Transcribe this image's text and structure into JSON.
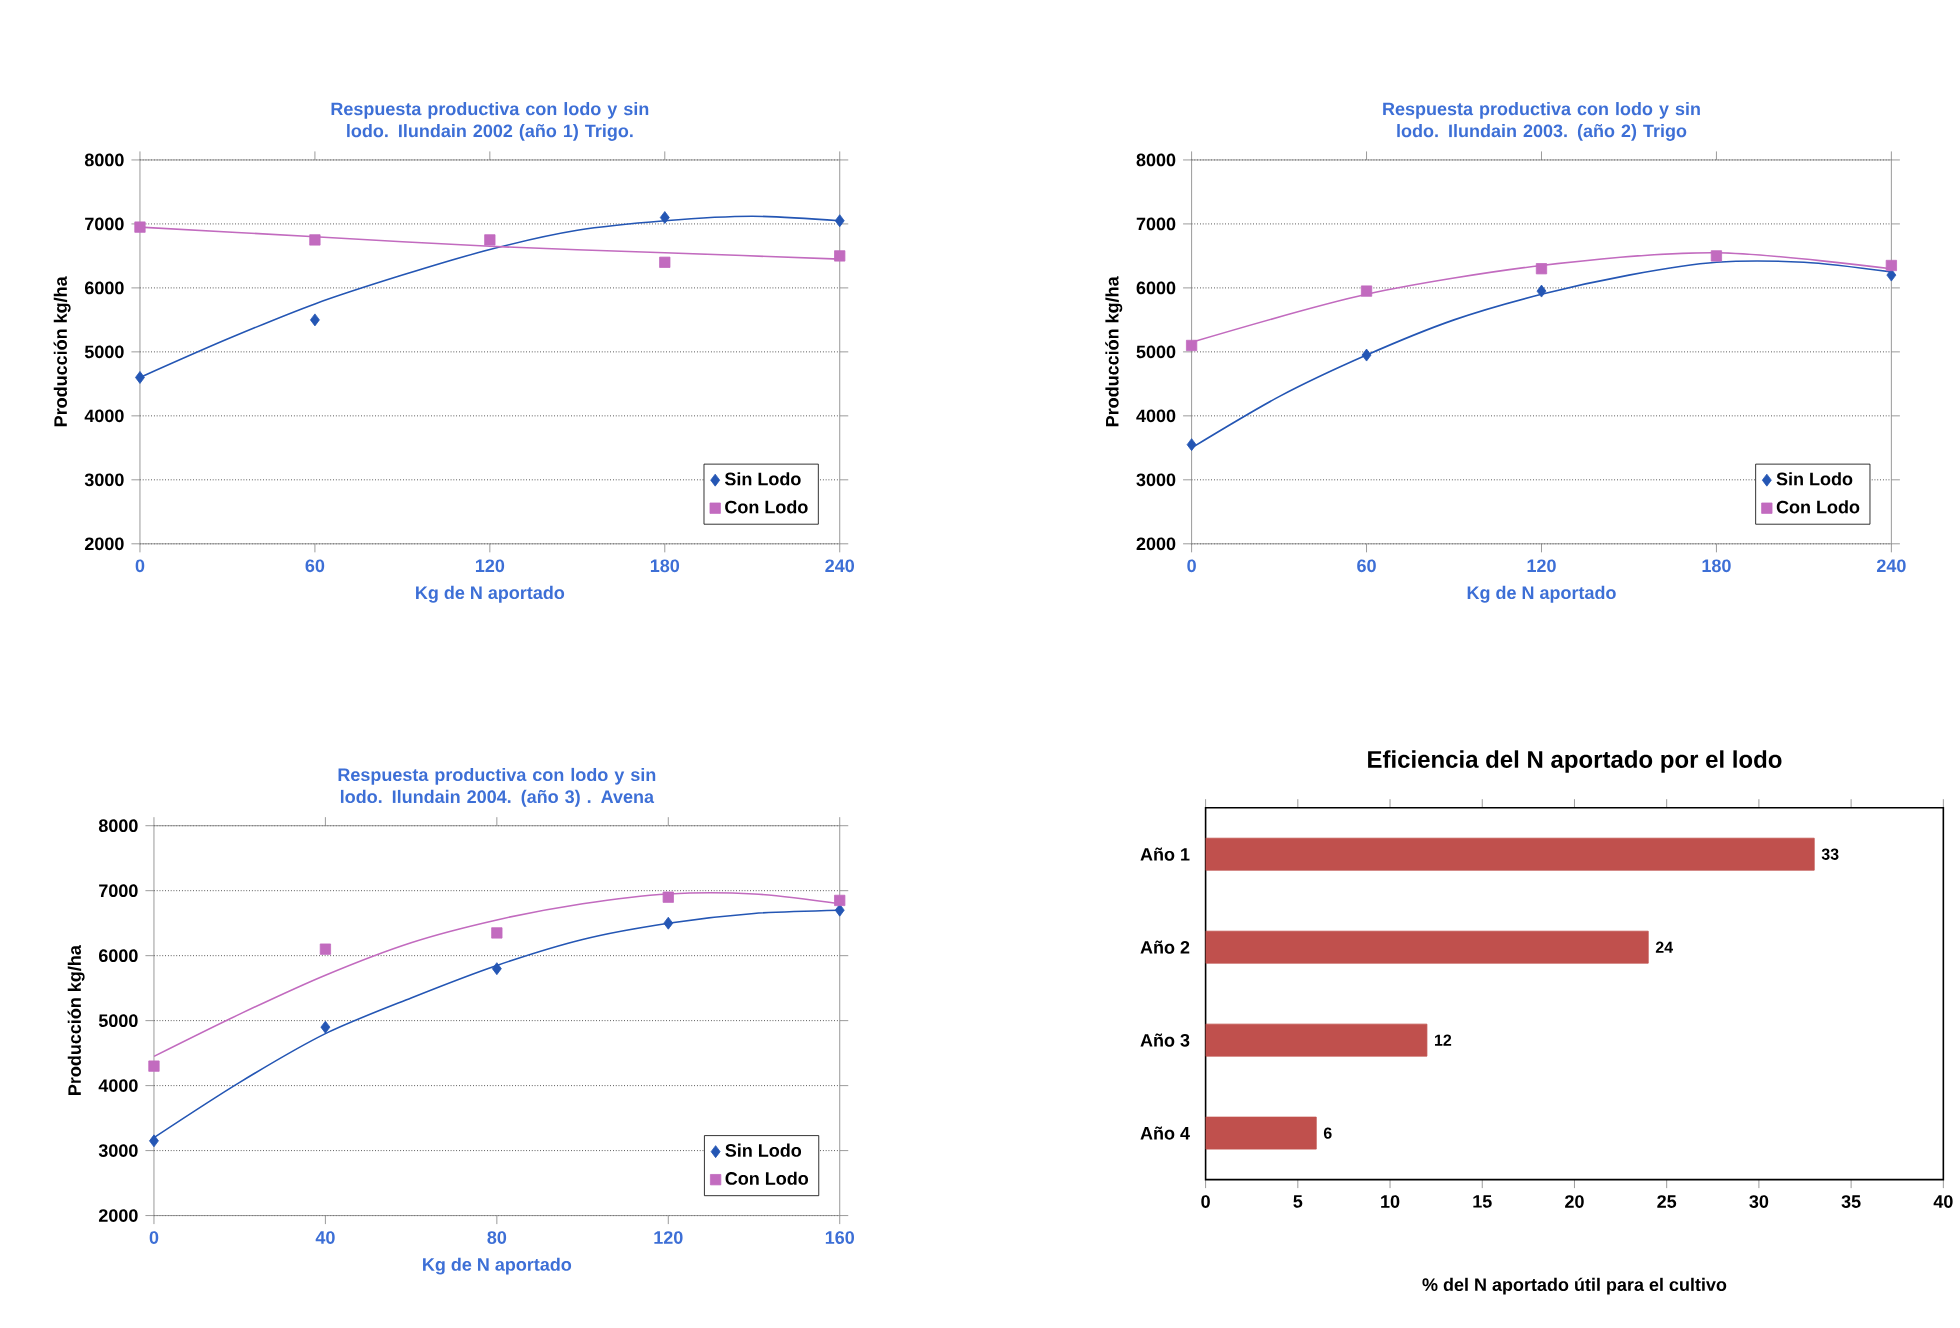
{
  "chart_data": [
    {
      "type": "scatter",
      "title": "Respuesta productiva con lodo y sin lodo. Ilundain 2002 (año 1) Trigo.",
      "xlabel": "Kg de N aportado",
      "ylabel": "Producción kg/ha",
      "xlim": [
        0,
        240
      ],
      "ylim": [
        2000,
        8000
      ],
      "xticks": [
        0,
        60,
        120,
        180,
        240
      ],
      "yticks": [
        2000,
        3000,
        4000,
        5000,
        6000,
        7000,
        8000
      ],
      "grid": "y",
      "legend": "bottom right",
      "series": [
        {
          "name": "Sin Lodo",
          "color": "#2456b4",
          "marker": "diamond",
          "x": [
            0,
            60,
            120,
            180,
            240
          ],
          "values": [
            4600,
            5500,
            null,
            7100,
            7050
          ]
        },
        {
          "name": "Con Lodo",
          "color": "#c26bbf",
          "marker": "square",
          "x": [
            0,
            60,
            120,
            180,
            240
          ],
          "values": [
            6950,
            6750,
            6750,
            6400,
            6500
          ]
        },
        {
          "type": "line",
          "color": "#2456b4",
          "x": [
            0,
            30,
            60,
            90,
            120,
            150,
            180,
            210,
            240
          ],
          "values": [
            4600,
            5200,
            5750,
            6200,
            6600,
            6900,
            7050,
            7120,
            7050
          ]
        },
        {
          "type": "line",
          "color": "#c26bbf",
          "x": [
            0,
            60,
            120,
            180,
            240
          ],
          "values": [
            6950,
            6800,
            6650,
            6550,
            6450
          ]
        }
      ]
    },
    {
      "type": "scatter",
      "title": "Respuesta productiva con lodo y sin lodo. Ilundain 2003. (año 2) Trigo",
      "xlabel": "Kg de N aportado",
      "ylabel": "Producción kg/ha",
      "xlim": [
        0,
        240
      ],
      "ylim": [
        2000,
        8000
      ],
      "xticks": [
        0,
        60,
        120,
        180,
        240
      ],
      "yticks": [
        2000,
        3000,
        4000,
        5000,
        6000,
        7000,
        8000
      ],
      "grid": "y",
      "legend": "bottom right",
      "series": [
        {
          "name": "Sin Lodo",
          "color": "#2456b4",
          "marker": "diamond",
          "x": [
            0,
            60,
            120,
            180,
            240
          ],
          "values": [
            3550,
            4950,
            5950,
            null,
            6200
          ]
        },
        {
          "name": "Con Lodo",
          "color": "#c26bbf",
          "marker": "square",
          "x": [
            0,
            60,
            120,
            180,
            240
          ],
          "values": [
            5100,
            5950,
            6300,
            6500,
            6350
          ]
        },
        {
          "type": "line",
          "color": "#2456b4",
          "x": [
            0,
            30,
            60,
            90,
            120,
            150,
            180,
            210,
            240
          ],
          "values": [
            3500,
            4300,
            4950,
            5500,
            5900,
            6200,
            6400,
            6400,
            6250
          ]
        },
        {
          "type": "line",
          "color": "#c26bbf",
          "x": [
            0,
            60,
            120,
            180,
            240
          ],
          "values": [
            5150,
            5900,
            6350,
            6550,
            6300
          ]
        }
      ]
    },
    {
      "type": "scatter",
      "title": "Respuesta productiva con lodo y sin lodo. Ilundain 2004. (año 3) . Avena",
      "xlabel": "Kg de N aportado",
      "ylabel": "Producción kg/ha",
      "xlim": [
        0,
        160
      ],
      "ylim": [
        2000,
        8000
      ],
      "xticks": [
        0,
        40,
        80,
        120,
        160
      ],
      "yticks": [
        2000,
        3000,
        4000,
        5000,
        6000,
        7000,
        8000
      ],
      "grid": "y",
      "legend": "bottom right",
      "series": [
        {
          "name": "Sin Lodo",
          "color": "#2456b4",
          "marker": "diamond",
          "x": [
            0,
            40,
            80,
            120,
            160
          ],
          "values": [
            3150,
            4900,
            5800,
            6500,
            6700
          ]
        },
        {
          "name": "Con Lodo",
          "color": "#c26bbf",
          "marker": "square",
          "x": [
            0,
            40,
            80,
            120,
            160
          ],
          "values": [
            4300,
            6100,
            6350,
            6900,
            6850
          ]
        },
        {
          "type": "line",
          "color": "#2456b4",
          "x": [
            0,
            20,
            40,
            60,
            80,
            100,
            120,
            140,
            160
          ],
          "values": [
            3200,
            4050,
            4800,
            5350,
            5850,
            6250,
            6500,
            6650,
            6700
          ]
        },
        {
          "type": "line",
          "color": "#c26bbf",
          "x": [
            0,
            20,
            40,
            60,
            80,
            100,
            120,
            140,
            160
          ],
          "values": [
            4450,
            5100,
            5700,
            6200,
            6550,
            6800,
            6950,
            6950,
            6800
          ]
        }
      ]
    },
    {
      "type": "bar",
      "orientation": "horizontal",
      "title": "Eficiencia del N aportado por el lodo",
      "xlabel": "% del N aportado útil para el cultivo",
      "categories": [
        "Año 1",
        "Año 2",
        "Año 3",
        "Año 4"
      ],
      "values": [
        33,
        24,
        12,
        6
      ],
      "color": "#c0504d",
      "xlim": [
        0,
        40
      ],
      "xticks": [
        0,
        5,
        10,
        15,
        20,
        25,
        30,
        35,
        40
      ],
      "data_labels": true
    }
  ]
}
